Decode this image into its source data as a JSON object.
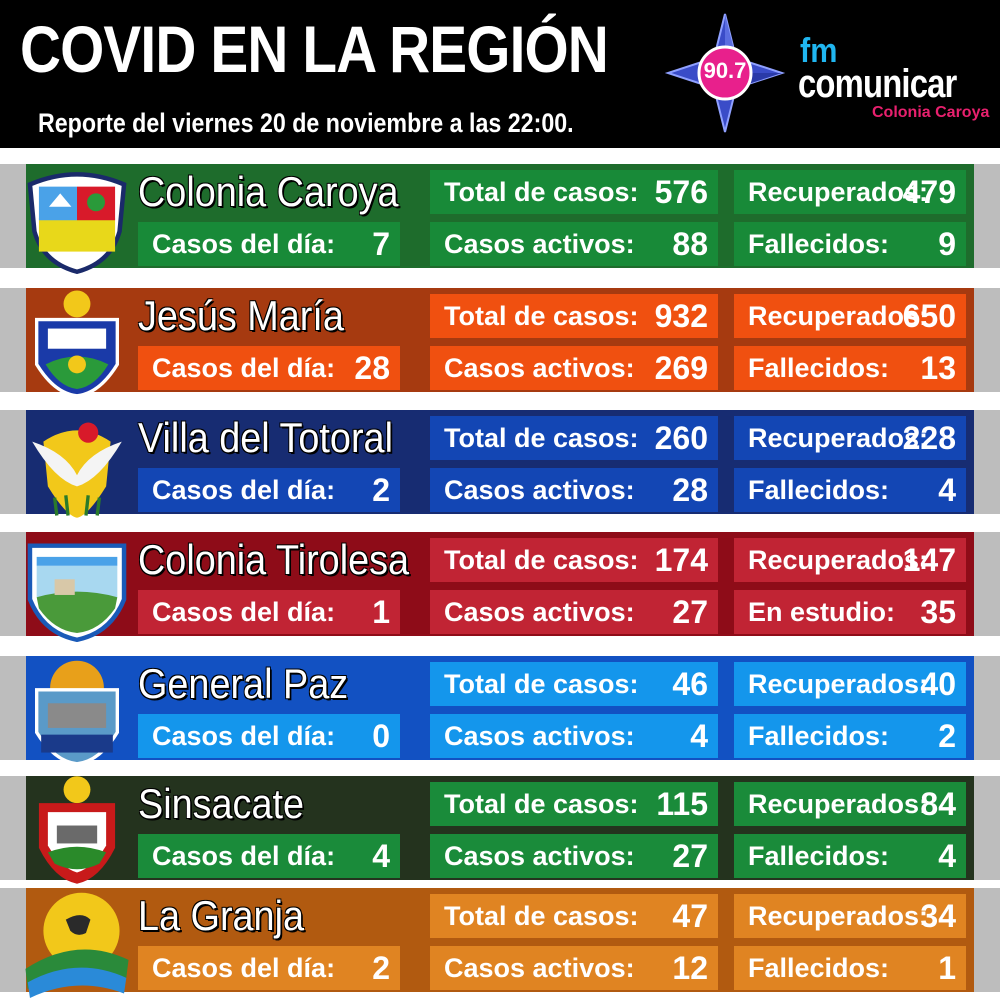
{
  "header": {
    "title": "COVID EN LA REGIÓN",
    "subtitle": "Reporte del viernes 20 de noviembre a las 22:00."
  },
  "logo": {
    "frequency": "90.7",
    "fm": "fm",
    "name": "comunicar",
    "city": "Colonia Caroya"
  },
  "regions": [
    {
      "name": "Colonia Caroya",
      "daily_label": "Casos del día:",
      "daily": "7",
      "total_label": "Total de casos:",
      "total": "576",
      "active_label": "Casos activos:",
      "active": "88",
      "recovered_label": "Recuperados:",
      "recovered": "479",
      "last_label": "Fallecidos:",
      "last": "9",
      "colors": {
        "band": "#1e6c2c",
        "box": "#188a38"
      }
    },
    {
      "name": "Jesús María",
      "daily_label": "Casos del día:",
      "daily": "28",
      "total_label": "Total de casos:",
      "total": "932",
      "active_label": "Casos activos:",
      "active": "269",
      "recovered_label": "Recuperados:",
      "recovered": "650",
      "last_label": "Fallecidos:",
      "last": "13",
      "colors": {
        "band": "#a63a10",
        "box": "#f05010"
      }
    },
    {
      "name": "Villa del Totoral",
      "daily_label": "Casos del día:",
      "daily": "2",
      "total_label": "Total de casos:",
      "total": "260",
      "active_label": "Casos activos:",
      "active": "28",
      "recovered_label": "Recuperados:",
      "recovered": "228",
      "last_label": "Fallecidos:",
      "last": "4",
      "colors": {
        "band": "#172c72",
        "box": "#1346b4"
      }
    },
    {
      "name": "Colonia Tirolesa",
      "daily_label": "Casos del día:",
      "daily": "1",
      "total_label": "Total de casos:",
      "total": "174",
      "active_label": "Casos activos:",
      "active": "27",
      "recovered_label": "Recuperados:",
      "recovered": "147",
      "last_label": "En estudio:",
      "last": "35",
      "colors": {
        "band": "#8e0c18",
        "box": "#c12434"
      }
    },
    {
      "name": "General Paz",
      "daily_label": "Casos del día:",
      "daily": "0",
      "total_label": "Total de casos:",
      "total": "46",
      "active_label": "Casos activos:",
      "active": "4",
      "recovered_label": "Recuperados:",
      "recovered": "40",
      "last_label": "Fallecidos:",
      "last": "2",
      "colors": {
        "band": "#1251c2",
        "box": "#1496ec"
      }
    },
    {
      "name": "Sinsacate",
      "daily_label": "Casos del día:",
      "daily": "4",
      "total_label": "Total de casos:",
      "total": "115",
      "active_label": "Casos activos:",
      "active": "27",
      "recovered_label": "Recuperados:",
      "recovered": "84",
      "last_label": "Fallecidos:",
      "last": "4",
      "colors": {
        "band": "#24331e",
        "box": "#1a8b3a"
      }
    },
    {
      "name": "La Granja",
      "daily_label": "Casos del día:",
      "daily": "2",
      "total_label": "Total de casos:",
      "total": "47",
      "active_label": "Casos activos:",
      "active": "12",
      "recovered_label": "Recuperados:",
      "recovered": "34",
      "last_label": "Fallecidos:",
      "last": "1",
      "colors": {
        "band": "#b15a10",
        "box": "#e08422"
      }
    }
  ]
}
